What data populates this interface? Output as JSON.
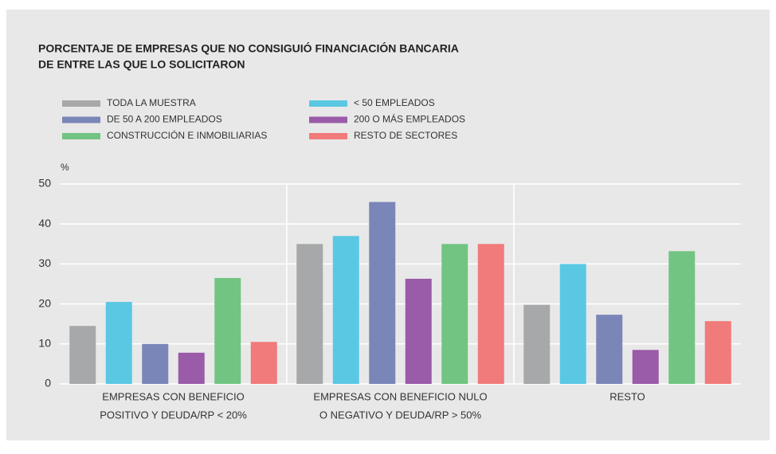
{
  "chart_data": {
    "type": "bar",
    "title": [
      "PORCENTAJE DE EMPRESAS QUE NO CONSIGUIÓ FINANCIACIÓN BANCARIA",
      "DE ENTRE LAS QUE LO SOLICITARON"
    ],
    "ylabel": "%",
    "categories": [
      [
        "EMPRESAS CON BENEFICIO",
        "POSITIVO Y DEUDA/RP < 20%"
      ],
      [
        "EMPRESAS CON BENEFICIO NULO",
        "O NEGATIVO Y DEUDA/RP > 50%"
      ],
      [
        "RESTO"
      ]
    ],
    "series": [
      {
        "name": "TODA LA MUESTRA",
        "color": "#a7a8aa",
        "values": [
          14.5,
          35,
          19.8
        ]
      },
      {
        "name": "< 50 EMPLEADOS",
        "color": "#5bc8e3",
        "values": [
          20.5,
          37,
          30
        ]
      },
      {
        "name": "DE 50 A 200 EMPLEADOS",
        "color": "#7a86b8",
        "values": [
          10,
          45.5,
          17.3
        ]
      },
      {
        "name": "200 O MÁS EMPLEADOS",
        "color": "#9a5ba8",
        "values": [
          7.8,
          26.3,
          8.5
        ]
      },
      {
        "name": "CONSTRUCCIÓN E INMOBILIARIAS",
        "color": "#72c482",
        "values": [
          26.5,
          35,
          33.2
        ]
      },
      {
        "name": "RESTO DE SECTORES",
        "color": "#f17a7a",
        "values": [
          10.5,
          35,
          15.7
        ]
      }
    ],
    "ylim": [
      0,
      50
    ],
    "yticks": [
      0,
      10,
      20,
      30,
      40,
      50
    ],
    "grid": true
  }
}
